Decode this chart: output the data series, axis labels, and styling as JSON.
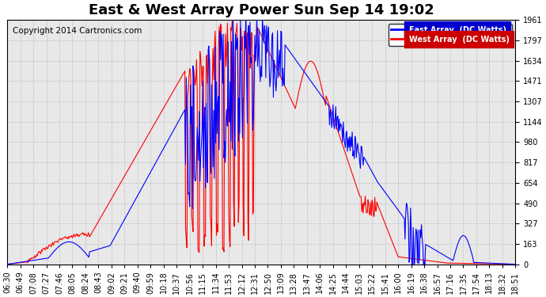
{
  "title": "East & West Array Power Sun Sep 14 19:02",
  "copyright": "Copyright 2014 Cartronics.com",
  "legend_east": "East Array  (DC Watts)",
  "legend_west": "West Array  (DC Watts)",
  "east_color": "#0000FF",
  "west_color": "#FF0000",
  "legend_east_bg": "#0000CC",
  "legend_west_bg": "#CC0000",
  "background_color": "#FFFFFF",
  "plot_bg": "#E8E8E8",
  "grid_color": "#BBBBBB",
  "yticks": [
    0.0,
    163.4,
    326.8,
    490.2,
    653.6,
    817.0,
    980.4,
    1143.8,
    1307.2,
    1470.6,
    1634.0,
    1797.4,
    1960.8
  ],
  "ymax": 1960.8,
  "ymin": 0.0,
  "title_fontsize": 13,
  "copyright_fontsize": 7.5,
  "tick_fontsize": 7
}
